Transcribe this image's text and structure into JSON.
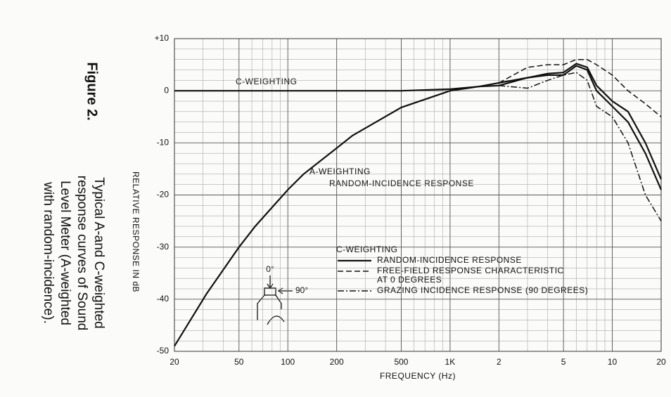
{
  "chart_data": {
    "type": "line",
    "figure_label": "Figure 2.",
    "caption": [
      "Typical A-and C-weighted",
      "response curves of Sound",
      "Level Meter (A-weighted",
      "with random-incidence)."
    ],
    "y_label": "RELATIVE RESPONSE IN dB",
    "x_label": "FREQUENCY (Hz)",
    "annotations": [
      "C-WEIGHTING",
      "RANDOM-INCIDENCE RESPONSE"
    ],
    "legend_title": "C-WEIGHTING",
    "diagram_labels": [
      "0°",
      "90°"
    ],
    "log_x": true,
    "grid": true,
    "xlim": [
      20,
      20000
    ],
    "ylim": [
      -50,
      10
    ],
    "xticks": [
      20,
      50,
      100,
      200,
      500,
      {
        "value": 1000,
        "label": "1K"
      },
      {
        "value": 2000,
        "label": "2"
      },
      {
        "value": 5000,
        "label": "5"
      },
      {
        "value": 10000,
        "label": "10"
      },
      {
        "value": 20000,
        "label": "20"
      }
    ],
    "yticks": [
      {
        "value": 10,
        "label": "+10"
      },
      0,
      -10,
      -20,
      -30,
      -40,
      -50
    ],
    "x": [
      20,
      31.5,
      50,
      63,
      100,
      125,
      200,
      250,
      500,
      1000,
      1500,
      2000,
      3000,
      4000,
      5000,
      6000,
      7000,
      8000,
      10000,
      12500,
      16000,
      20000
    ],
    "series": [
      {
        "name": "A-WEIGHTING",
        "color": "#111",
        "style": "solid",
        "values": [
          -49,
          -39,
          -30,
          -26,
          -19,
          -16,
          -11,
          -8.6,
          -3.2,
          0,
          0.8,
          1,
          2.5,
          3,
          3,
          4.8,
          4,
          0,
          -3,
          -6,
          -12,
          -19
        ]
      },
      {
        "name": "RANDOM-INCIDENCE RESPONSE",
        "color": "#111",
        "style": "solid",
        "values": [
          0,
          0,
          0,
          0,
          0,
          0,
          0,
          0,
          0,
          0.3,
          0.8,
          1.5,
          2.5,
          3.3,
          3.5,
          5.2,
          4.5,
          1,
          -2,
          -4,
          -10,
          -17
        ]
      },
      {
        "name": "FREE-FIELD RESPONSE CHARACTERISTIC AT 0 DEGREES",
        "color": "#111",
        "style": "dashed",
        "values": [
          null,
          null,
          null,
          null,
          null,
          null,
          null,
          null,
          null,
          null,
          null,
          1.5,
          4.5,
          5,
          5,
          6,
          6,
          5,
          3,
          0,
          -2.5,
          -5
        ]
      },
      {
        "name": "GRAZING INCIDENCE RESPONSE (90 DEGREES)",
        "color": "#111",
        "style": "dashdot",
        "values": [
          null,
          null,
          null,
          null,
          null,
          null,
          null,
          null,
          null,
          null,
          null,
          1,
          0.5,
          2,
          3,
          3.5,
          2,
          -3,
          -5,
          -10,
          -20,
          -25
        ]
      }
    ]
  }
}
